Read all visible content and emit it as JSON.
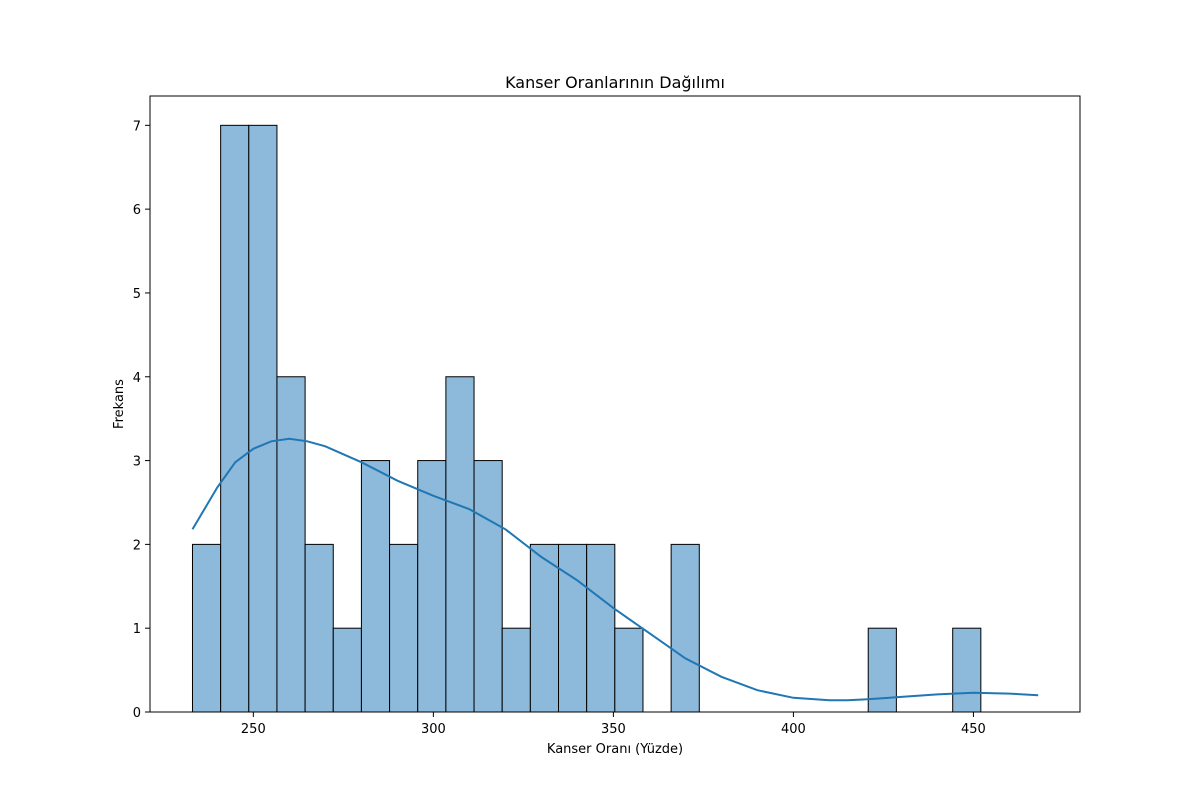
{
  "chart_data": {
    "type": "bar",
    "title": "Kanser Oranlarının Dağılımı",
    "xlabel": "Kanser Oranı (Yüzde)",
    "ylabel": "Frekans",
    "xlim": [
      221.3,
      479.6
    ],
    "ylim": [
      0,
      7.35
    ],
    "xticks": [
      250,
      300,
      350,
      400,
      450
    ],
    "yticks": [
      0,
      1,
      2,
      3,
      4,
      5,
      6,
      7
    ],
    "bin_start": 233.1,
    "bin_width": 7.82,
    "counts": [
      2,
      7,
      7,
      4,
      2,
      1,
      3,
      2,
      3,
      4,
      3,
      1,
      2,
      2,
      2,
      1,
      0,
      2,
      0,
      0,
      0,
      0,
      0,
      0,
      1,
      0,
      0,
      1
    ],
    "kde": {
      "x": [
        233.1,
        240,
        245,
        250,
        255,
        260,
        265,
        270,
        280,
        290,
        300,
        310,
        320,
        330,
        340,
        350,
        360,
        370,
        380,
        390,
        400,
        410,
        415,
        420,
        430,
        440,
        450,
        460,
        468.0
      ],
      "y": [
        2.18,
        2.68,
        2.98,
        3.14,
        3.23,
        3.26,
        3.23,
        3.17,
        2.98,
        2.76,
        2.58,
        2.42,
        2.18,
        1.85,
        1.57,
        1.24,
        0.94,
        0.64,
        0.42,
        0.26,
        0.17,
        0.14,
        0.14,
        0.15,
        0.18,
        0.21,
        0.23,
        0.22,
        0.2
      ]
    },
    "colors": {
      "bar_fill": "#8db9db",
      "bar_edge": "#000000",
      "kde_line": "#1f77b4"
    },
    "grid": false
  }
}
